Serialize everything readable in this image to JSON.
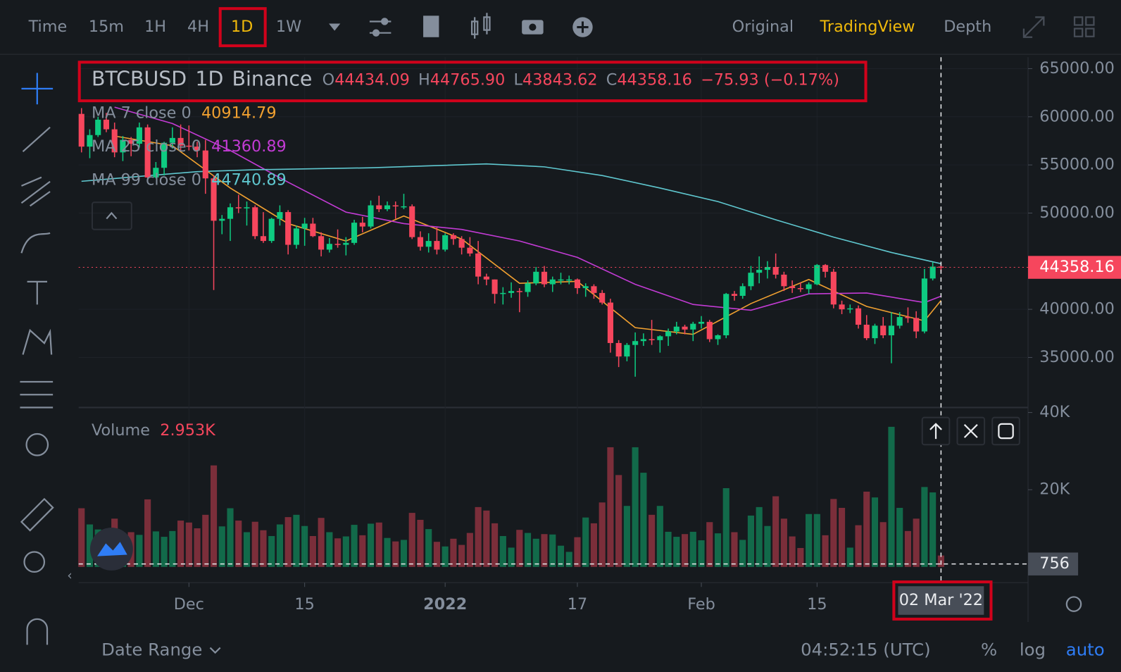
{
  "toolbar": {
    "intervals": [
      "Time",
      "15m",
      "1H",
      "4H",
      "1D",
      "1W"
    ],
    "views": [
      "Original",
      "TradingView",
      "Depth"
    ]
  },
  "header": {
    "symbol": "BTCBUSD",
    "interval": "1D",
    "exchange": "Binance",
    "o_prefix": "O",
    "o": "44434.09",
    "h_prefix": "H",
    "h": "44765.90",
    "l_prefix": "L",
    "l": "43843.62",
    "c_prefix": "C",
    "c": "44358.16",
    "change": "−75.93 (−0.17%)"
  },
  "footer": {
    "date_range": "Date Range",
    "clock": "04:52:15 (UTC)",
    "percent": "%",
    "log": "log",
    "auto": "auto"
  },
  "chart_data": {
    "type": "candlestick",
    "up_color": "#0ecb81",
    "down_color": "#f6465d",
    "categories": [
      "2021-11-18",
      "2021-11-19",
      "2021-11-20",
      "2021-11-21",
      "2021-11-22",
      "2021-11-23",
      "2021-11-24",
      "2021-11-25",
      "2021-11-26",
      "2021-11-27",
      "2021-11-28",
      "2021-11-29",
      "2021-11-30",
      "2021-12-01",
      "2021-12-02",
      "2021-12-03",
      "2021-12-04",
      "2021-12-05",
      "2021-12-06",
      "2021-12-07",
      "2021-12-08",
      "2021-12-09",
      "2021-12-10",
      "2021-12-11",
      "2021-12-12",
      "2021-12-13",
      "2021-12-14",
      "2021-12-15",
      "2021-12-16",
      "2021-12-17",
      "2021-12-18",
      "2021-12-19",
      "2021-12-20",
      "2021-12-21",
      "2021-12-22",
      "2021-12-23",
      "2021-12-24",
      "2021-12-25",
      "2021-12-26",
      "2021-12-27",
      "2021-12-28",
      "2021-12-29",
      "2021-12-30",
      "2021-12-31",
      "2022-01-01",
      "2022-01-02",
      "2022-01-03",
      "2022-01-04",
      "2022-01-05",
      "2022-01-06",
      "2022-01-07",
      "2022-01-08",
      "2022-01-09",
      "2022-01-10",
      "2022-01-11",
      "2022-01-12",
      "2022-01-13",
      "2022-01-14",
      "2022-01-15",
      "2022-01-16",
      "2022-01-17",
      "2022-01-18",
      "2022-01-19",
      "2022-01-20",
      "2022-01-21",
      "2022-01-22",
      "2022-01-23",
      "2022-01-24",
      "2022-01-25",
      "2022-01-26",
      "2022-01-27",
      "2022-01-28",
      "2022-01-29",
      "2022-01-30",
      "2022-01-31",
      "2022-02-01",
      "2022-02-02",
      "2022-02-03",
      "2022-02-04",
      "2022-02-05",
      "2022-02-06",
      "2022-02-07",
      "2022-02-08",
      "2022-02-09",
      "2022-02-10",
      "2022-02-11",
      "2022-02-12",
      "2022-02-13",
      "2022-02-14",
      "2022-02-15",
      "2022-02-16",
      "2022-02-17",
      "2022-02-18",
      "2022-02-19",
      "2022-02-20",
      "2022-02-21",
      "2022-02-22",
      "2022-02-23",
      "2022-02-24",
      "2022-02-25",
      "2022-02-26",
      "2022-02-27",
      "2022-02-28",
      "2022-03-01",
      "2022-03-02"
    ],
    "open": [
      60300,
      56900,
      58100,
      59700,
      58700,
      56300,
      57600,
      57200,
      58900,
      53700,
      54700,
      57300,
      57800,
      57000,
      56900,
      56500,
      53600,
      49200,
      49400,
      50600,
      50500,
      50600,
      47600,
      47100,
      49400,
      50100,
      46700,
      48400,
      48900,
      47600,
      46200,
      46800,
      46700,
      46900,
      49000,
      48600,
      50800,
      50400,
      50800,
      50700,
      50700,
      47500,
      46500,
      47100,
      46200,
      47700,
      47300,
      46400,
      45800,
      43400,
      43100,
      41600,
      41700,
      41900,
      41800,
      42700,
      43900,
      42600,
      43100,
      43100,
      43100,
      42200,
      42400,
      41700,
      40700,
      36500,
      35100,
      36300,
      36700,
      36900,
      36800,
      37200,
      37700,
      38200,
      37900,
      38500,
      38700,
      36900,
      37300,
      41600,
      41400,
      42400,
      43800,
      44100,
      44400,
      43600,
      42400,
      42200,
      42100,
      42600,
      44600,
      43900,
      40500,
      40000,
      40100,
      38400,
      37000,
      38300,
      37300,
      38300,
      39200,
      39100,
      37700,
      43200,
      44434.09
    ],
    "high": [
      60900,
      58700,
      60000,
      60400,
      59400,
      58000,
      57900,
      59400,
      59200,
      55300,
      57400,
      58900,
      59200,
      59100,
      57400,
      57600,
      53900,
      49800,
      51000,
      51900,
      51200,
      50800,
      50100,
      49500,
      50800,
      50300,
      48700,
      49500,
      49500,
      48000,
      47400,
      48300,
      47500,
      49300,
      49600,
      51300,
      51800,
      51200,
      51200,
      52000,
      50900,
      48100,
      47900,
      48500,
      47900,
      47900,
      47600,
      47500,
      47100,
      43700,
      43100,
      42300,
      42800,
      42200,
      43000,
      44400,
      44500,
      43400,
      43800,
      43500,
      43200,
      42700,
      42600,
      42000,
      41100,
      36800,
      36500,
      37600,
      37500,
      38900,
      37300,
      38000,
      38700,
      38400,
      38700,
      39300,
      38900,
      37400,
      41700,
      41900,
      42700,
      44500,
      45500,
      45000,
      45800,
      43900,
      43000,
      42800,
      42800,
      44700,
      44700,
      44200,
      40900,
      40500,
      40400,
      39400,
      38500,
      39200,
      39700,
      39700,
      40200,
      39800,
      44200,
      44900,
      44765.9
    ],
    "low": [
      56300,
      55700,
      57900,
      58400,
      55800,
      55400,
      55900,
      56800,
      53500,
      53600,
      53900,
      56700,
      56400,
      56500,
      55800,
      52000,
      42000,
      47800,
      47100,
      50000,
      48700,
      47300,
      46900,
      46900,
      48700,
      45700,
      46300,
      46600,
      47500,
      45500,
      45900,
      46400,
      45600,
      46700,
      48000,
      48400,
      50100,
      50200,
      49400,
      50400,
      47300,
      46100,
      45900,
      45700,
      46000,
      46700,
      45700,
      45500,
      42600,
      42500,
      40600,
      40500,
      41200,
      39700,
      41300,
      42500,
      42300,
      41800,
      42600,
      42600,
      41600,
      41300,
      41100,
      40500,
      35500,
      34000,
      34600,
      33000,
      36200,
      36300,
      35500,
      36200,
      37400,
      37400,
      36700,
      38000,
      36600,
      36300,
      37000,
      40900,
      41100,
      42000,
      42700,
      43200,
      43200,
      41900,
      41700,
      41800,
      41600,
      42500,
      43300,
      40100,
      39500,
      39600,
      38000,
      36800,
      36400,
      37000,
      34400,
      38000,
      38600,
      37000,
      37500,
      43000,
      43843.62
    ],
    "close": [
      56900,
      58100,
      59700,
      58700,
      56300,
      57600,
      57200,
      58900,
      53700,
      54700,
      57300,
      57800,
      57000,
      56900,
      56500,
      53600,
      49200,
      49400,
      50600,
      50500,
      50600,
      47600,
      47100,
      49400,
      50100,
      46700,
      48400,
      48900,
      47600,
      46200,
      46800,
      46700,
      46900,
      49000,
      48600,
      50800,
      50400,
      50800,
      50700,
      50700,
      47500,
      46500,
      47100,
      46200,
      47700,
      47300,
      46400,
      45800,
      43400,
      43100,
      41600,
      41700,
      41900,
      41800,
      42700,
      43900,
      42600,
      43100,
      43100,
      43100,
      42200,
      42400,
      41700,
      40700,
      36500,
      35100,
      36300,
      36700,
      36900,
      36800,
      37200,
      37700,
      38200,
      37900,
      38500,
      38700,
      36900,
      37300,
      41600,
      41400,
      42400,
      43800,
      44100,
      44400,
      43600,
      42400,
      42200,
      42100,
      42600,
      44600,
      43900,
      40500,
      40000,
      40100,
      38400,
      37000,
      38300,
      37300,
      38300,
      39200,
      39100,
      37700,
      43200,
      44434.09,
      44358.16
    ],
    "ylim": [
      29950,
      66190
    ],
    "yticks": [
      {
        "value": 35000,
        "label": "35000.00"
      },
      {
        "value": 40000,
        "label": "40000.00"
      },
      {
        "value": 50000,
        "label": "50000.00"
      },
      {
        "value": 55000,
        "label": "55000.00"
      },
      {
        "value": 60000,
        "label": "60000.00"
      },
      {
        "value": 65000,
        "label": "65000.00"
      }
    ],
    "xticks": [
      {
        "value": "2021-12-01",
        "label": "Dec"
      },
      {
        "value": "2021-12-15",
        "label": "15"
      },
      {
        "value": "2022-01-01",
        "label": "2022"
      },
      {
        "value": "2022-01-17",
        "label": "17"
      },
      {
        "value": "2022-02-01",
        "label": "Feb"
      },
      {
        "value": "2022-02-15",
        "label": "15"
      }
    ],
    "grid": true,
    "ma": [
      {
        "name": "MA 7 close 0",
        "color": "#f0a030",
        "value_label": "40914.79",
        "x": [
          "2021-11-22",
          "2021-11-29",
          "2021-12-06",
          "2021-12-13",
          "2021-12-20",
          "2021-12-27",
          "2022-01-03",
          "2022-01-10",
          "2022-01-17",
          "2022-01-24",
          "2022-01-31",
          "2022-02-07",
          "2022-02-14",
          "2022-02-21",
          "2022-02-28",
          "2022-03-02"
        ],
        "values": [
          58000,
          57000,
          52600,
          48900,
          47100,
          49700,
          47300,
          42700,
          42900,
          38100,
          37400,
          40600,
          43100,
          40300,
          38800,
          40914.79
        ]
      },
      {
        "name": "MA 25 close 0",
        "color": "#c23bd4",
        "value_label": "41360.89",
        "x": [
          "2021-11-22",
          "2021-11-29",
          "2021-12-06",
          "2021-12-13",
          "2021-12-20",
          "2021-12-27",
          "2022-01-03",
          "2022-01-10",
          "2022-01-17",
          "2022-01-24",
          "2022-01-31",
          "2022-02-07",
          "2022-02-14",
          "2022-02-21",
          "2022-02-28",
          "2022-03-02"
        ],
        "values": [
          61000,
          59300,
          56500,
          53200,
          50100,
          48900,
          48300,
          47100,
          45400,
          42600,
          40500,
          39900,
          41600,
          41700,
          40700,
          41360.89
        ]
      },
      {
        "name": "MA 99 close 0",
        "color": "#5fc7cf",
        "value_label": "44740.89",
        "x": [
          "2021-11-18",
          "2021-11-25",
          "2021-12-02",
          "2021-12-09",
          "2021-12-16",
          "2021-12-23",
          "2021-12-30",
          "2022-01-06",
          "2022-01-13",
          "2022-01-20",
          "2022-01-27",
          "2022-02-03",
          "2022-02-10",
          "2022-02-17",
          "2022-02-24",
          "2022-03-02"
        ],
        "values": [
          53300,
          53800,
          54300,
          54500,
          54600,
          54700,
          54900,
          55100,
          54800,
          53900,
          52600,
          51200,
          49300,
          47500,
          45900,
          44740.89
        ]
      }
    ],
    "volume": {
      "name": "Volume",
      "legend_value": "2.953K",
      "ylim": [
        0,
        41300
      ],
      "yticks": [
        {
          "value": 20000,
          "label": "20K"
        },
        {
          "value": 40000,
          "label": "40K"
        }
      ],
      "values": [
        15200,
        11000,
        9700,
        9000,
        12500,
        8500,
        9000,
        8300,
        17500,
        9200,
        7800,
        9300,
        12000,
        11500,
        10000,
        13500,
        26300,
        10500,
        15200,
        12000,
        9000,
        11700,
        9500,
        8000,
        11000,
        12900,
        13500,
        10600,
        8000,
        12700,
        9000,
        7400,
        7900,
        10900,
        8200,
        11200,
        11500,
        7500,
        6600,
        7000,
        14000,
        12200,
        9800,
        6500,
        5300,
        7300,
        5700,
        8800,
        15500,
        14600,
        11300,
        8000,
        5000,
        9600,
        8800,
        7300,
        8500,
        8400,
        5500,
        3900,
        7700,
        12800,
        11300,
        16700,
        31000,
        23800,
        15800,
        31000,
        24400,
        13500,
        15800,
        9100,
        7800,
        8500,
        9100,
        6900,
        11600,
        8700,
        20400,
        9000,
        7000,
        13300,
        15500,
        10600,
        18300,
        12500,
        7900,
        4900,
        13700,
        13700,
        8200,
        17600,
        15300,
        5000,
        10800,
        19500,
        18000,
        11600,
        36300,
        15300,
        9300,
        12500,
        20700,
        19300,
        2953
      ]
    },
    "crosshair": {
      "date": "2022-03-02",
      "date_label": "02 Mar '22",
      "volume_value": 756
    }
  }
}
